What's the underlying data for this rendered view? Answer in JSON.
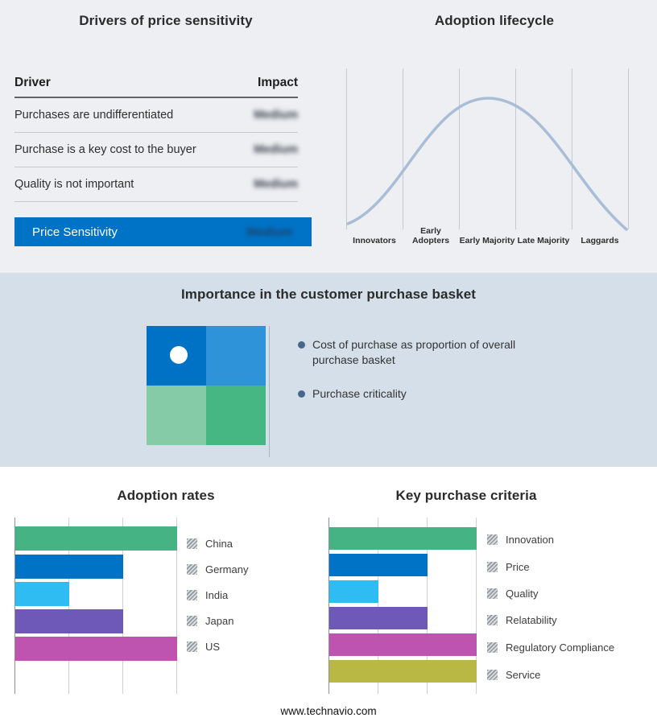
{
  "drivers": {
    "title": "Drivers of price sensitivity",
    "columns": {
      "driver": "Driver",
      "impact": "Impact"
    },
    "rows": [
      {
        "driver": "Purchases are undifferentiated",
        "impact": "Medium"
      },
      {
        "driver": "Purchase is a key cost to the buyer",
        "impact": "Medium"
      },
      {
        "driver": "Quality is not important",
        "impact": "Medium"
      }
    ],
    "summary": {
      "label": "Price Sensitivity",
      "impact": "Medium",
      "bar_color": "#0173c7"
    },
    "impact_values_blurred": true
  },
  "lifecycle": {
    "title": "Adoption lifecycle",
    "curve_color": "#a9bdd6",
    "stages": [
      "Innovators",
      "Early Adopters",
      "Early Majority",
      "Late Majority",
      "Laggards"
    ]
  },
  "basket": {
    "title": "Importance in the customer purchase basket",
    "bullets": [
      "Cost of purchase as proportion of overall purchase basket",
      "Purchase criticality"
    ],
    "quadrant_colors": {
      "top_left": "#0072c6",
      "top_right": "#2e93d8",
      "bottom_left": "#85cba7",
      "bottom_right": "#46b682"
    }
  },
  "adoption": {
    "title": "Adoption rates",
    "items": [
      {
        "label": "China",
        "value": 3,
        "color": "#45b383"
      },
      {
        "label": "Germany",
        "value": 2,
        "color": "#0173c7"
      },
      {
        "label": "India",
        "value": 1,
        "color": "#2fbcf2"
      },
      {
        "label": "Japan",
        "value": 2,
        "color": "#6e58b8"
      },
      {
        "label": "US",
        "value": 3,
        "color": "#bf53b0"
      }
    ]
  },
  "criteria": {
    "title": "Key purchase criteria",
    "items": [
      {
        "label": "Innovation",
        "value": 3,
        "color": "#45b383"
      },
      {
        "label": "Price",
        "value": 2,
        "color": "#0173c7"
      },
      {
        "label": "Quality",
        "value": 1,
        "color": "#2fbcf2"
      },
      {
        "label": "Relatability",
        "value": 2,
        "color": "#6e58b8"
      },
      {
        "label": "Regulatory Compliance",
        "value": 3,
        "color": "#bf53b0"
      },
      {
        "label": "Service",
        "value": 3,
        "color": "#b9b845"
      }
    ]
  },
  "footer": {
    "text": "www.technavio.com"
  },
  "chart_data": [
    {
      "type": "table",
      "title": "Drivers of price sensitivity",
      "columns": [
        "Driver",
        "Impact"
      ],
      "rows": [
        [
          "Purchases are undifferentiated",
          "Medium"
        ],
        [
          "Purchase is a key cost to the buyer",
          "Medium"
        ],
        [
          "Quality is not important",
          "Medium"
        ],
        [
          "Price Sensitivity",
          "Medium"
        ]
      ],
      "note": "Impact values are shown blurred/redacted in the image"
    },
    {
      "type": "line",
      "title": "Adoption lifecycle",
      "categories": [
        "Innovators",
        "Early Adopters",
        "Early Majority",
        "Late Majority",
        "Laggards"
      ],
      "values": [
        0.08,
        0.55,
        1.0,
        0.55,
        0.08
      ],
      "xlabel": "",
      "ylabel": "",
      "grid": "vertical segment dividers only, no numeric axes",
      "note": "standard bell curve peaking at Early Majority"
    },
    {
      "type": "bar",
      "title": "Adoption rates",
      "orientation": "horizontal",
      "categories": [
        "China",
        "Germany",
        "India",
        "Japan",
        "US"
      ],
      "values": [
        3,
        2,
        1,
        2,
        3
      ],
      "xlim": [
        0,
        3
      ],
      "grid": "vertical gridlines at 1,2,3 (unlabeled)",
      "legend_position": "right",
      "note": "values estimated from gridlines; no numeric labels shown"
    },
    {
      "type": "bar",
      "title": "Key purchase criteria",
      "orientation": "horizontal",
      "categories": [
        "Innovation",
        "Price",
        "Quality",
        "Relatability",
        "Regulatory Compliance",
        "Service"
      ],
      "values": [
        3,
        2,
        1,
        2,
        3,
        3
      ],
      "xlim": [
        0,
        3
      ],
      "grid": "vertical gridlines at 1,2,3 (unlabeled)",
      "legend_position": "right",
      "note": "values estimated from gridlines; no numeric labels shown"
    }
  ]
}
